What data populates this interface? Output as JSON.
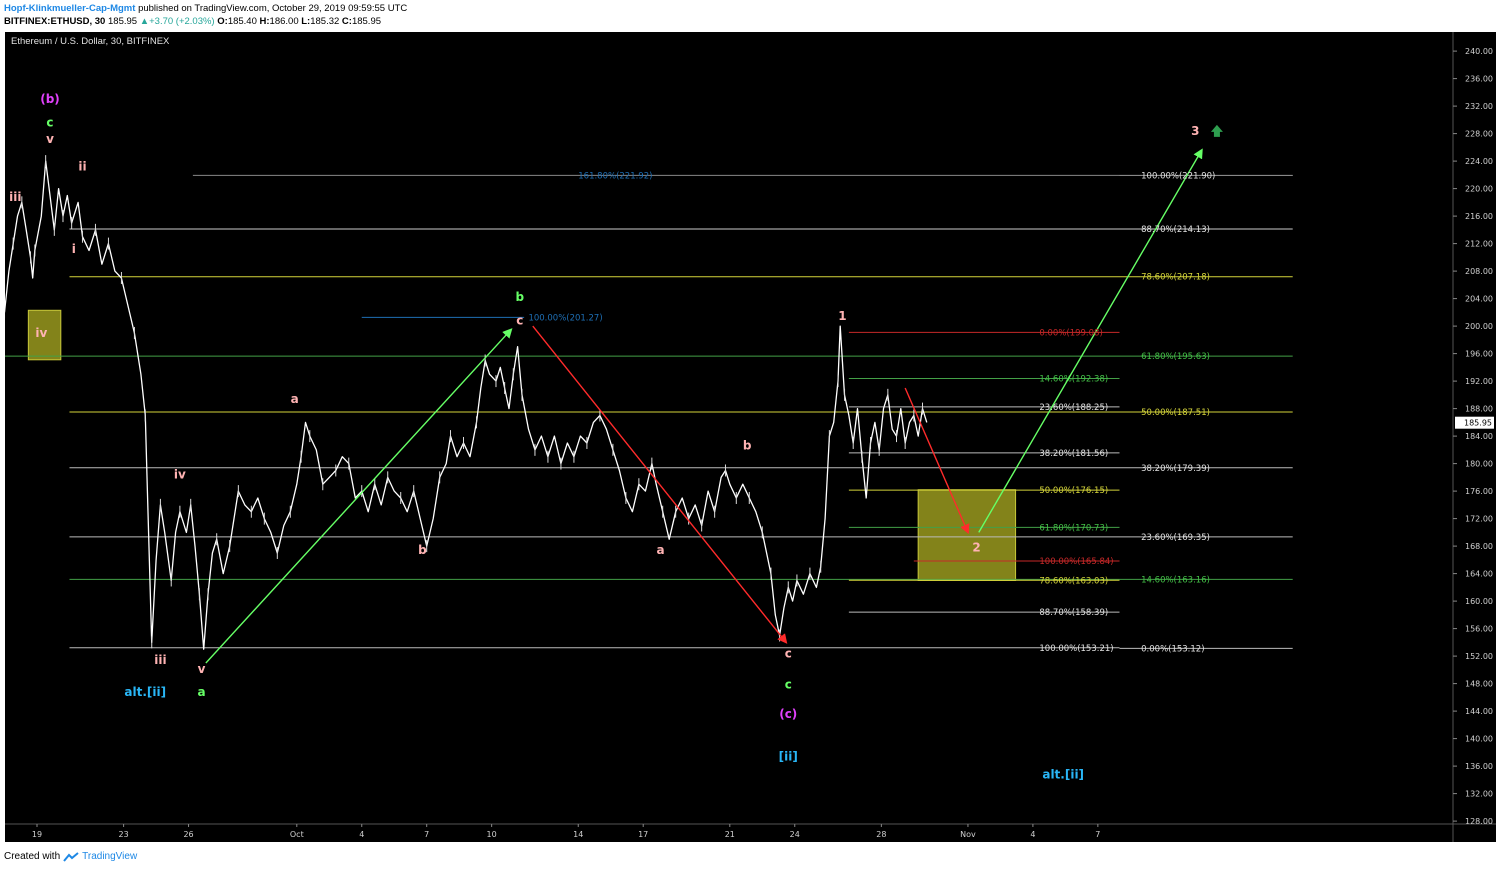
{
  "header": {
    "author": "Hopf-Klinkmueller-Cap-Mgmt",
    "published": "published on TradingView.com, October 29, 2019 09:59:55 UTC",
    "symbol": "BITFINEX:ETHUSD, 30",
    "last": "185.95",
    "change": "+3.70 (+2.03%)",
    "open_label": "O:",
    "open": "185.40",
    "high_label": "H:",
    "high": "186.00",
    "low_label": "L:",
    "low": "185.32",
    "close_label": "C:",
    "close": "185.95"
  },
  "footer": {
    "created_with": "Created with",
    "brand": "TradingView"
  },
  "chart_data": {
    "type": "line",
    "title": "Ethereum / U.S. Dollar, 30, BITFINEX",
    "xlabel": "",
    "ylabel": "",
    "ylim": [
      126,
      241
    ],
    "price_ticks": [
      "128.00",
      "132.00",
      "136.00",
      "140.00",
      "144.00",
      "148.00",
      "152.00",
      "156.00",
      "160.00",
      "164.00",
      "168.00",
      "172.00",
      "176.00",
      "180.00",
      "184.00",
      "188.00",
      "192.00",
      "196.00",
      "200.00",
      "204.00",
      "208.00",
      "212.00",
      "216.00",
      "220.00",
      "224.00",
      "228.00",
      "232.00",
      "236.00",
      "240.00"
    ],
    "current_price": "185.95",
    "date_ticks": [
      {
        "label": "19",
        "t": 0
      },
      {
        "label": "23",
        "t": 4
      },
      {
        "label": "26",
        "t": 7
      },
      {
        "label": "Oct",
        "t": 12
      },
      {
        "label": "4",
        "t": 15
      },
      {
        "label": "7",
        "t": 18
      },
      {
        "label": "10",
        "t": 21
      },
      {
        "label": "14",
        "t": 25
      },
      {
        "label": "17",
        "t": 28
      },
      {
        "label": "21",
        "t": 32
      },
      {
        "label": "24",
        "t": 35
      },
      {
        "label": "28",
        "t": 39
      },
      {
        "label": "Nov",
        "t": 43
      },
      {
        "label": "4",
        "t": 46
      },
      {
        "label": "7",
        "t": 49
      }
    ],
    "price_path": [
      [
        -1.5,
        202
      ],
      [
        -1.3,
        208
      ],
      [
        -1.1,
        212
      ],
      [
        -0.9,
        216
      ],
      [
        -0.7,
        218
      ],
      [
        -0.5,
        214
      ],
      [
        -0.3,
        210
      ],
      [
        -0.2,
        207
      ],
      [
        -0.1,
        211
      ],
      [
        0.2,
        216
      ],
      [
        0.4,
        224
      ],
      [
        0.6,
        219
      ],
      [
        0.8,
        214
      ],
      [
        1.0,
        220
      ],
      [
        1.2,
        216
      ],
      [
        1.4,
        219
      ],
      [
        1.6,
        215
      ],
      [
        1.9,
        218
      ],
      [
        2.1,
        213
      ],
      [
        2.4,
        211
      ],
      [
        2.7,
        214
      ],
      [
        3.0,
        209
      ],
      [
        3.3,
        212
      ],
      [
        3.6,
        208
      ],
      [
        3.9,
        207
      ],
      [
        4.2,
        203
      ],
      [
        4.5,
        199
      ],
      [
        4.8,
        193
      ],
      [
        5.0,
        187
      ],
      [
        5.1,
        176
      ],
      [
        5.3,
        154
      ],
      [
        5.5,
        166
      ],
      [
        5.7,
        174
      ],
      [
        5.9,
        170
      ],
      [
        6.2,
        163
      ],
      [
        6.4,
        170
      ],
      [
        6.6,
        173
      ],
      [
        6.9,
        170
      ],
      [
        7.1,
        174
      ],
      [
        7.3,
        168
      ],
      [
        7.5,
        161
      ],
      [
        7.7,
        153
      ],
      [
        7.9,
        161
      ],
      [
        8.1,
        167
      ],
      [
        8.3,
        169
      ],
      [
        8.6,
        164
      ],
      [
        8.9,
        168
      ],
      [
        9.1,
        172
      ],
      [
        9.3,
        176
      ],
      [
        9.6,
        174
      ],
      [
        9.9,
        173
      ],
      [
        10.2,
        175
      ],
      [
        10.5,
        172
      ],
      [
        10.8,
        170
      ],
      [
        11.1,
        167
      ],
      [
        11.4,
        171
      ],
      [
        11.7,
        173
      ],
      [
        12.0,
        177
      ],
      [
        12.2,
        181
      ],
      [
        12.4,
        186
      ],
      [
        12.6,
        184
      ],
      [
        12.9,
        182
      ],
      [
        13.2,
        177
      ],
      [
        13.5,
        178
      ],
      [
        13.8,
        179
      ],
      [
        14.1,
        181
      ],
      [
        14.4,
        180
      ],
      [
        14.7,
        175
      ],
      [
        15.0,
        176
      ],
      [
        15.3,
        173
      ],
      [
        15.6,
        177
      ],
      [
        15.9,
        174
      ],
      [
        16.2,
        178
      ],
      [
        16.5,
        176
      ],
      [
        16.8,
        175
      ],
      [
        17.1,
        173
      ],
      [
        17.4,
        176
      ],
      [
        17.7,
        172
      ],
      [
        18.0,
        168
      ],
      [
        18.3,
        172
      ],
      [
        18.6,
        178
      ],
      [
        18.9,
        180
      ],
      [
        19.1,
        184
      ],
      [
        19.4,
        181
      ],
      [
        19.7,
        183
      ],
      [
        20.0,
        181
      ],
      [
        20.3,
        186
      ],
      [
        20.5,
        191
      ],
      [
        20.7,
        195
      ],
      [
        20.9,
        193
      ],
      [
        21.2,
        192
      ],
      [
        21.4,
        194
      ],
      [
        21.6,
        191
      ],
      [
        21.8,
        188
      ],
      [
        22.0,
        193
      ],
      [
        22.2,
        197
      ],
      [
        22.4,
        190
      ],
      [
        22.7,
        185
      ],
      [
        23.0,
        182
      ],
      [
        23.3,
        184
      ],
      [
        23.6,
        181
      ],
      [
        23.9,
        184
      ],
      [
        24.2,
        180
      ],
      [
        24.5,
        183
      ],
      [
        24.8,
        181
      ],
      [
        25.1,
        184
      ],
      [
        25.4,
        183
      ],
      [
        25.7,
        186
      ],
      [
        26.0,
        187
      ],
      [
        26.3,
        185
      ],
      [
        26.6,
        182
      ],
      [
        26.9,
        179
      ],
      [
        27.2,
        175
      ],
      [
        27.5,
        173
      ],
      [
        27.8,
        177
      ],
      [
        28.1,
        176
      ],
      [
        28.4,
        180
      ],
      [
        28.6,
        177
      ],
      [
        28.9,
        173
      ],
      [
        29.2,
        169
      ],
      [
        29.5,
        173
      ],
      [
        29.8,
        175
      ],
      [
        30.1,
        172
      ],
      [
        30.4,
        174
      ],
      [
        30.7,
        171
      ],
      [
        31.0,
        176
      ],
      [
        31.3,
        173
      ],
      [
        31.6,
        178
      ],
      [
        31.8,
        179
      ],
      [
        32.0,
        177
      ],
      [
        32.3,
        175
      ],
      [
        32.6,
        177
      ],
      [
        32.9,
        175
      ],
      [
        33.2,
        173
      ],
      [
        33.5,
        170
      ],
      [
        33.7,
        167
      ],
      [
        33.9,
        164
      ],
      [
        34.1,
        158
      ],
      [
        34.3,
        155
      ],
      [
        34.5,
        159
      ],
      [
        34.7,
        162
      ],
      [
        34.9,
        160
      ],
      [
        35.1,
        163
      ],
      [
        35.4,
        161
      ],
      [
        35.7,
        164
      ],
      [
        36.0,
        162
      ],
      [
        36.2,
        165
      ],
      [
        36.4,
        172
      ],
      [
        36.6,
        184
      ],
      [
        36.8,
        186
      ],
      [
        37.0,
        192
      ],
      [
        37.1,
        200
      ],
      [
        37.3,
        190
      ],
      [
        37.5,
        187
      ],
      [
        37.7,
        183
      ],
      [
        37.9,
        188
      ],
      [
        38.1,
        181
      ],
      [
        38.3,
        175
      ],
      [
        38.5,
        183
      ],
      [
        38.7,
        186
      ],
      [
        38.9,
        182
      ],
      [
        39.1,
        188
      ],
      [
        39.3,
        190
      ],
      [
        39.5,
        185
      ],
      [
        39.7,
        184
      ],
      [
        39.9,
        188
      ],
      [
        40.1,
        183
      ],
      [
        40.3,
        186
      ],
      [
        40.5,
        187
      ],
      [
        40.7,
        184
      ],
      [
        40.9,
        188
      ],
      [
        41.1,
        186
      ]
    ],
    "horizontal_levels": [
      {
        "price": 221.92,
        "t0": 7.2,
        "t1": 58,
        "color": "#888888",
        "label": "161.80%(221.92)",
        "label_t": 25,
        "label_color": "#1e6fb5"
      },
      {
        "price": 221.9,
        "t0": 50,
        "t1": 58,
        "color": "#888888",
        "label": "100.00%(221.90)",
        "label_t": 51,
        "label_color": "#e0e0e0"
      },
      {
        "price": 214.13,
        "t0": 1.5,
        "t1": 58,
        "color": "#cccccc",
        "label": "88.70%(214.13)",
        "label_t": 51,
        "label_color": "#e0e0e0"
      },
      {
        "price": 207.18,
        "t0": 1.5,
        "t1": 58,
        "color": "#d4d43a",
        "label": "78.60%(207.18)",
        "label_t": 51,
        "label_color": "#d4d43a"
      },
      {
        "price": 201.27,
        "t0": 15,
        "t1": 22.5,
        "color": "#1e6fb5",
        "label": "100.00%(201.27)",
        "label_t": 22.7,
        "label_color": "#1e6fb5"
      },
      {
        "price": 199.08,
        "t0": 37.5,
        "t1": 50,
        "color": "#c62828",
        "label": "0.00%(199.08)",
        "label_t": 46.3,
        "label_color": "#c62828"
      },
      {
        "price": 195.63,
        "t0": -1.5,
        "t1": 58,
        "color": "#43a047",
        "label": "61.80%(195.63)",
        "label_t": 51,
        "label_color": "#43c047"
      },
      {
        "price": 192.38,
        "t0": 37.5,
        "t1": 50,
        "color": "#43a047",
        "label": "14.60%(192.38)",
        "label_t": 46.3,
        "label_color": "#43c047"
      },
      {
        "price": 188.25,
        "t0": 37.5,
        "t1": 50,
        "color": "#bbbbbb",
        "label": "23.60%(188.25)",
        "label_t": 46.3,
        "label_color": "#e0e0e0"
      },
      {
        "price": 187.51,
        "t0": 1.5,
        "t1": 58,
        "color": "#d4d43a",
        "label": "50.00%(187.51)",
        "label_t": 51,
        "label_color": "#d4d43a"
      },
      {
        "price": 181.56,
        "t0": 37.5,
        "t1": 50,
        "color": "#bbbbbb",
        "label": "38.20%(181.56)",
        "label_t": 46.3,
        "label_color": "#e0e0e0"
      },
      {
        "price": 179.39,
        "t0": 1.5,
        "t1": 58,
        "color": "#bbbbbb",
        "label": "38.20%(179.39)",
        "label_t": 51,
        "label_color": "#e0e0e0"
      },
      {
        "price": 176.15,
        "t0": 37.5,
        "t1": 50,
        "color": "#d4d43a",
        "label": "50.00%(176.15)",
        "label_t": 46.3,
        "label_color": "#d4d43a"
      },
      {
        "price": 170.73,
        "t0": 37.5,
        "t1": 50,
        "color": "#43a047",
        "label": "61.80%(170.73)",
        "label_t": 46.3,
        "label_color": "#43c047"
      },
      {
        "price": 169.35,
        "t0": 1.5,
        "t1": 58,
        "color": "#bbbbbb",
        "label": "23.60%(169.35)",
        "label_t": 51,
        "label_color": "#e0e0e0"
      },
      {
        "price": 165.84,
        "t0": 40.5,
        "t1": 50,
        "color": "#c62828",
        "label": "100.00%(165.84)",
        "label_t": 46.3,
        "label_color": "#c62828"
      },
      {
        "price": 163.16,
        "t0": 1.5,
        "t1": 58,
        "color": "#43a047",
        "label": "14.60%(163.16)",
        "label_t": 51,
        "label_color": "#43c047"
      },
      {
        "price": 163.03,
        "t0": 37.5,
        "t1": 50,
        "color": "#d4d43a",
        "label": "78.60%(163.03)",
        "label_t": 46.3,
        "label_color": "#d4d43a"
      },
      {
        "price": 158.39,
        "t0": 37.5,
        "t1": 50,
        "color": "#bbbbbb",
        "label": "88.70%(158.39)",
        "label_t": 46.3,
        "label_color": "#e0e0e0"
      },
      {
        "price": 153.21,
        "t0": 1.5,
        "t1": 50,
        "color": "#bbbbbb",
        "label": "100.00%(153.21)",
        "label_t": 46.3,
        "label_color": "#e0e0e0"
      },
      {
        "price": 153.12,
        "t0": 50,
        "t1": 58,
        "color": "#bbbbbb",
        "label": "0.00%(153.12)",
        "label_t": 51,
        "label_color": "#e0e0e0"
      }
    ],
    "boxes": [
      {
        "t0": -0.4,
        "t1": 1.1,
        "p0": 195.1,
        "p1": 202.3
      },
      {
        "t0": 40.7,
        "t1": 45.2,
        "p0": 163.0,
        "p1": 176.2
      }
    ],
    "arrows": [
      {
        "t0": 7.8,
        "p0": 151,
        "t1": 21.9,
        "p1": 199.5,
        "color": "#66ff66"
      },
      {
        "t0": 22.9,
        "p0": 200,
        "t1": 34.6,
        "p1": 154,
        "color": "#ff2b2b"
      },
      {
        "t0": 40.1,
        "p0": 191,
        "t1": 43.0,
        "p1": 170,
        "color": "#ff2b2b"
      },
      {
        "t0": 43.5,
        "p0": 170,
        "t1": 53.8,
        "p1": 225.6,
        "color": "#66ff66"
      }
    ],
    "wave_labels": [
      {
        "text": "(b)",
        "t": 0.6,
        "p": 233,
        "color": "#e040fb"
      },
      {
        "text": "c",
        "t": 0.6,
        "p": 229.6,
        "color": "#66ff66"
      },
      {
        "text": "v",
        "t": 0.6,
        "p": 227.2,
        "color": "#ffb3b3"
      },
      {
        "text": "ii",
        "t": 2.1,
        "p": 223.2,
        "color": "#ffb3b3"
      },
      {
        "text": "iii",
        "t": -1.0,
        "p": 218.8,
        "color": "#ffb3b3"
      },
      {
        "text": "i",
        "t": 1.7,
        "p": 211.2,
        "color": "#ffb3b3"
      },
      {
        "text": "iv",
        "t": 0.2,
        "p": 199.0,
        "color": "#ffb3b3"
      },
      {
        "text": "iv",
        "t": 6.6,
        "p": 178.4,
        "color": "#ffb3b3"
      },
      {
        "text": "iii",
        "t": 5.7,
        "p": 151.4,
        "color": "#ffb3b3"
      },
      {
        "text": "v",
        "t": 7.6,
        "p": 150.1,
        "color": "#ffb3b3"
      },
      {
        "text": "alt.[ii]",
        "t": 5.0,
        "p": 146.8,
        "color": "#29b6f6"
      },
      {
        "text": "a",
        "t": 7.6,
        "p": 146.8,
        "color": "#66ff66"
      },
      {
        "text": "a",
        "t": 11.9,
        "p": 189.4,
        "color": "#ffb3b3"
      },
      {
        "text": "b",
        "t": 17.8,
        "p": 167.4,
        "color": "#ffb3b3"
      },
      {
        "text": "b",
        "t": 22.3,
        "p": 204.2,
        "color": "#66ff66"
      },
      {
        "text": "c",
        "t": 22.3,
        "p": 200.8,
        "color": "#ffb3b3"
      },
      {
        "text": "b",
        "t": 32.8,
        "p": 182.6,
        "color": "#ffb3b3"
      },
      {
        "text": "a",
        "t": 28.8,
        "p": 167.4,
        "color": "#ffb3b3"
      },
      {
        "text": "c",
        "t": 34.7,
        "p": 152.4,
        "color": "#ffb3b3"
      },
      {
        "text": "c",
        "t": 34.7,
        "p": 147.9,
        "color": "#66ff66"
      },
      {
        "text": "(c)",
        "t": 34.7,
        "p": 143.6,
        "color": "#e040fb"
      },
      {
        "text": "[ii]",
        "t": 34.7,
        "p": 137.4,
        "color": "#29b6f6"
      },
      {
        "text": "1",
        "t": 37.2,
        "p": 201.5,
        "color": "#ffb3b3"
      },
      {
        "text": "2",
        "t": 43.4,
        "p": 167.8,
        "color": "#ffb3b3"
      },
      {
        "text": "3",
        "t": 53.5,
        "p": 228.4,
        "color": "#ffb3b3"
      },
      {
        "text": "alt.[ii]",
        "t": 47.4,
        "p": 134.8,
        "color": "#29b6f6"
      }
    ]
  }
}
